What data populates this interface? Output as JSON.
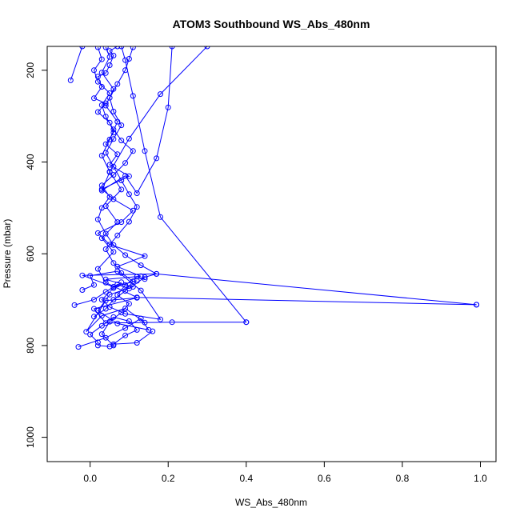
{
  "chart_data": {
    "type": "line",
    "title": "ATOM3 Southbound WS_Abs_480nm",
    "xlabel": "WS_Abs_480nm",
    "ylabel": "Pressure (mbar)",
    "xlim": [
      -0.11,
      1.04
    ],
    "ylim": [
      1053,
      148
    ],
    "y_inverted": true,
    "x_ticks": [
      0.0,
      0.2,
      0.4,
      0.6,
      0.8,
      1.0
    ],
    "x_tick_labels": [
      "0.0",
      "0.2",
      "0.4",
      "0.6",
      "0.8",
      "1.0"
    ],
    "y_ticks": [
      200,
      400,
      600,
      800,
      1000
    ],
    "y_tick_labels": [
      "200",
      "400",
      "600",
      "800",
      "1000"
    ],
    "grid": false,
    "legend": "none",
    "series_color": "#0000ff",
    "markers": "open-circle",
    "series": [
      {
        "points": [
          [
            -0.03,
            803
          ],
          [
            0.04,
            783
          ],
          [
            0.09,
            762
          ],
          [
            0.13,
            741
          ],
          [
            0.15,
            766
          ],
          [
            0.07,
            752
          ],
          [
            0.02,
            724
          ],
          [
            0.05,
            689
          ],
          [
            0.11,
            672
          ],
          [
            0.04,
            656
          ],
          [
            0.13,
            649
          ],
          [
            0.07,
            628
          ],
          [
            0.14,
            605
          ],
          [
            0.05,
            580
          ],
          [
            0.02,
            555
          ],
          [
            0.08,
            531
          ],
          [
            0.11,
            506
          ],
          [
            0.06,
            481
          ],
          [
            0.03,
            459
          ],
          [
            0.1,
            431
          ],
          [
            0.05,
            406
          ],
          [
            0.07,
            383
          ],
          [
            0.04,
            361
          ],
          [
            0.06,
            336
          ],
          [
            0.05,
            314
          ],
          [
            0.02,
            291
          ],
          [
            0.04,
            272
          ],
          [
            0.01,
            261
          ],
          [
            0.03,
            236
          ],
          [
            0.02,
            214
          ],
          [
            0.04,
            206
          ],
          [
            0.05,
            189
          ],
          [
            0.06,
            168
          ],
          [
            0.05,
            158
          ],
          [
            0.07,
            148
          ]
        ]
      },
      {
        "points": [
          [
            -0.04,
            712
          ],
          [
            0.01,
            700
          ],
          [
            0.04,
            683
          ],
          [
            0.07,
            667
          ],
          [
            0.1,
            676
          ],
          [
            0.14,
            651
          ],
          [
            0.17,
            644
          ],
          [
            0.13,
            625
          ],
          [
            0.09,
            603
          ],
          [
            0.06,
            581
          ],
          [
            0.04,
            556
          ],
          [
            0.02,
            525
          ],
          [
            0.03,
            500
          ],
          [
            0.05,
            476
          ],
          [
            0.03,
            451
          ],
          [
            0.06,
            428
          ],
          [
            0.09,
            402
          ],
          [
            0.11,
            376
          ],
          [
            0.08,
            353
          ],
          [
            0.06,
            329
          ],
          [
            0.04,
            301
          ],
          [
            0.03,
            276
          ],
          [
            0.05,
            250
          ],
          [
            0.02,
            225
          ],
          [
            0.01,
            200
          ],
          [
            0.03,
            176
          ],
          [
            0.02,
            150
          ]
        ]
      },
      {
        "points": [
          [
            -0.05,
            222
          ],
          [
            -0.02,
            148
          ]
        ]
      },
      {
        "points": [
          [
            0.02,
            793
          ],
          [
            0.0,
            776
          ],
          [
            0.03,
            757
          ],
          [
            0.06,
            738
          ],
          [
            0.1,
            747
          ],
          [
            0.12,
            766
          ],
          [
            0.09,
            778
          ],
          [
            0.06,
            797
          ],
          [
            0.12,
            794
          ],
          [
            0.16,
            769
          ]
        ]
      },
      {
        "points": [
          [
            0.99,
            711
          ],
          [
            0.17,
            644
          ],
          [
            -0.02,
            647
          ],
          [
            0.06,
            672
          ],
          [
            0.12,
            659
          ]
        ]
      },
      {
        "points": [
          [
            0.4,
            749
          ],
          [
            0.21,
            749
          ],
          [
            0.04,
            751
          ],
          [
            0.01,
            720
          ],
          [
            0.12,
            696
          ],
          [
            0.04,
            702
          ],
          [
            -0.01,
            770
          ],
          [
            0.03,
            735
          ],
          [
            0.09,
            719
          ],
          [
            0.14,
            750
          ]
        ]
      },
      {
        "points": [
          [
            0.3,
            148
          ],
          [
            0.18,
            252
          ],
          [
            0.1,
            349
          ],
          [
            0.05,
            422
          ],
          [
            0.03,
            462
          ],
          [
            0.09,
            430
          ],
          [
            0.12,
            468
          ],
          [
            0.17,
            392
          ],
          [
            0.2,
            281
          ],
          [
            0.21,
            148
          ]
        ]
      },
      {
        "points": [
          [
            0.08,
            148
          ],
          [
            0.09,
            178
          ],
          [
            0.11,
            256
          ],
          [
            0.14,
            376
          ],
          [
            0.18,
            520
          ],
          [
            0.4,
            749
          ]
        ]
      },
      {
        "points": [
          [
            -0.02,
            679
          ],
          [
            0.01,
            668
          ],
          [
            0.0,
            648
          ],
          [
            0.07,
            638
          ],
          [
            0.13,
            680
          ],
          [
            0.18,
            743
          ],
          [
            0.09,
            731
          ],
          [
            0.05,
            716
          ],
          [
            0.03,
            700
          ],
          [
            0.06,
            675
          ],
          [
            0.08,
            662
          ]
        ]
      },
      {
        "points": [
          [
            0.99,
            711
          ],
          [
            0.12,
            695
          ],
          [
            0.04,
            663
          ],
          [
            0.02,
            633
          ],
          [
            0.06,
            596
          ],
          [
            0.03,
            566
          ],
          [
            0.07,
            531
          ],
          [
            0.04,
            496
          ],
          [
            0.08,
            460
          ],
          [
            0.05,
            421
          ],
          [
            0.03,
            386
          ],
          [
            0.05,
            351
          ],
          [
            0.07,
            312
          ],
          [
            0.04,
            277
          ],
          [
            0.06,
            241
          ],
          [
            0.03,
            205
          ],
          [
            0.05,
            171
          ],
          [
            0.04,
            150
          ]
        ]
      },
      {
        "points": [
          [
            0.02,
            800
          ],
          [
            0.05,
            802
          ],
          [
            0.06,
            800
          ],
          [
            0.03,
            775
          ],
          [
            0.05,
            748
          ],
          [
            0.08,
            728
          ],
          [
            0.1,
            709
          ],
          [
            0.07,
            690
          ],
          [
            0.09,
            668
          ],
          [
            0.12,
            650
          ],
          [
            0.14,
            655
          ]
        ]
      },
      {
        "points": [
          [
            0.01,
            737
          ],
          [
            0.04,
            720
          ],
          [
            0.06,
            700
          ],
          [
            0.09,
            681
          ],
          [
            0.11,
            660
          ],
          [
            0.08,
            642
          ],
          [
            0.06,
            620
          ],
          [
            0.04,
            590
          ],
          [
            0.07,
            560
          ],
          [
            0.1,
            530
          ],
          [
            0.12,
            498
          ],
          [
            0.1,
            470
          ],
          [
            0.08,
            440
          ],
          [
            0.06,
            410
          ],
          [
            0.04,
            380
          ],
          [
            0.06,
            350
          ],
          [
            0.08,
            320
          ],
          [
            0.06,
            290
          ],
          [
            0.05,
            260
          ],
          [
            0.07,
            230
          ],
          [
            0.09,
            200
          ],
          [
            0.1,
            175
          ],
          [
            0.11,
            150
          ]
        ]
      }
    ]
  }
}
